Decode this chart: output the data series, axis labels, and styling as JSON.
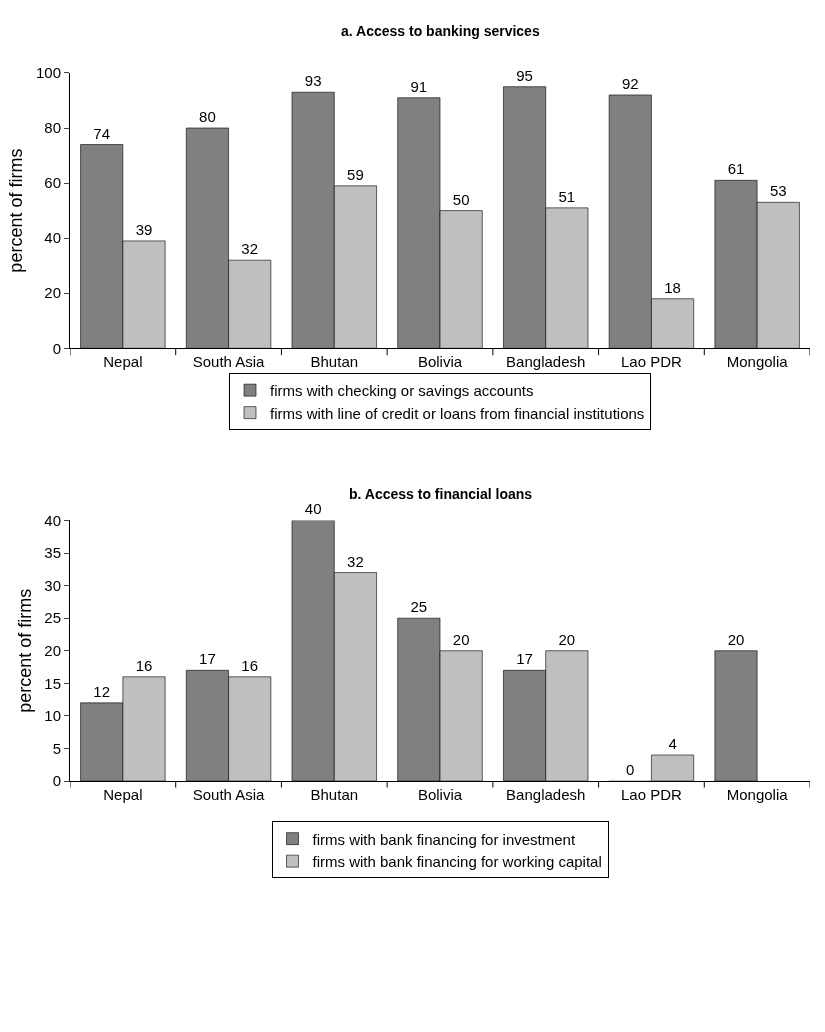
{
  "chart_data": [
    {
      "type": "bar",
      "title": "a. Access to banking services",
      "ylabel": "percent of firms",
      "categories": [
        "Nepal",
        "South Asia",
        "Bhutan",
        "Bolivia",
        "Bangladesh",
        "Lao PDR",
        "Mongolia"
      ],
      "series": [
        {
          "name": "firms with checking or savings accounts",
          "color": "#808083",
          "values": [
            74,
            80,
            93,
            91,
            95,
            92,
            61
          ]
        },
        {
          "name": "firms with line of credit or loans from financial institutions",
          "color": "#bfbfc1",
          "values": [
            39,
            32,
            59,
            50,
            51,
            18,
            53
          ]
        }
      ],
      "ylim": [
        0,
        100
      ],
      "yticks": [
        0,
        20,
        40,
        60,
        80,
        100
      ],
      "data_labels": true,
      "legend": "bottom"
    },
    {
      "type": "bar",
      "title": "b. Access to financial loans",
      "ylabel": "percent of firms",
      "categories": [
        "Nepal",
        "South Asia",
        "Bhutan",
        "Bolivia",
        "Bangladesh",
        "Lao PDR",
        "Mongolia"
      ],
      "series": [
        {
          "name": "firms with bank financing for investment",
          "color": "#808083",
          "values": [
            12,
            17,
            40,
            25,
            17,
            0,
            20
          ]
        },
        {
          "name": "firms with bank financing for working capital",
          "color": "#bfbfc1",
          "values": [
            16,
            16,
            32,
            20,
            20,
            4,
            null
          ]
        }
      ],
      "ylim": [
        0,
        40
      ],
      "yticks": [
        0,
        5,
        10,
        15,
        20,
        25,
        30,
        35,
        40
      ],
      "data_labels": true,
      "legend": "bottom"
    }
  ]
}
